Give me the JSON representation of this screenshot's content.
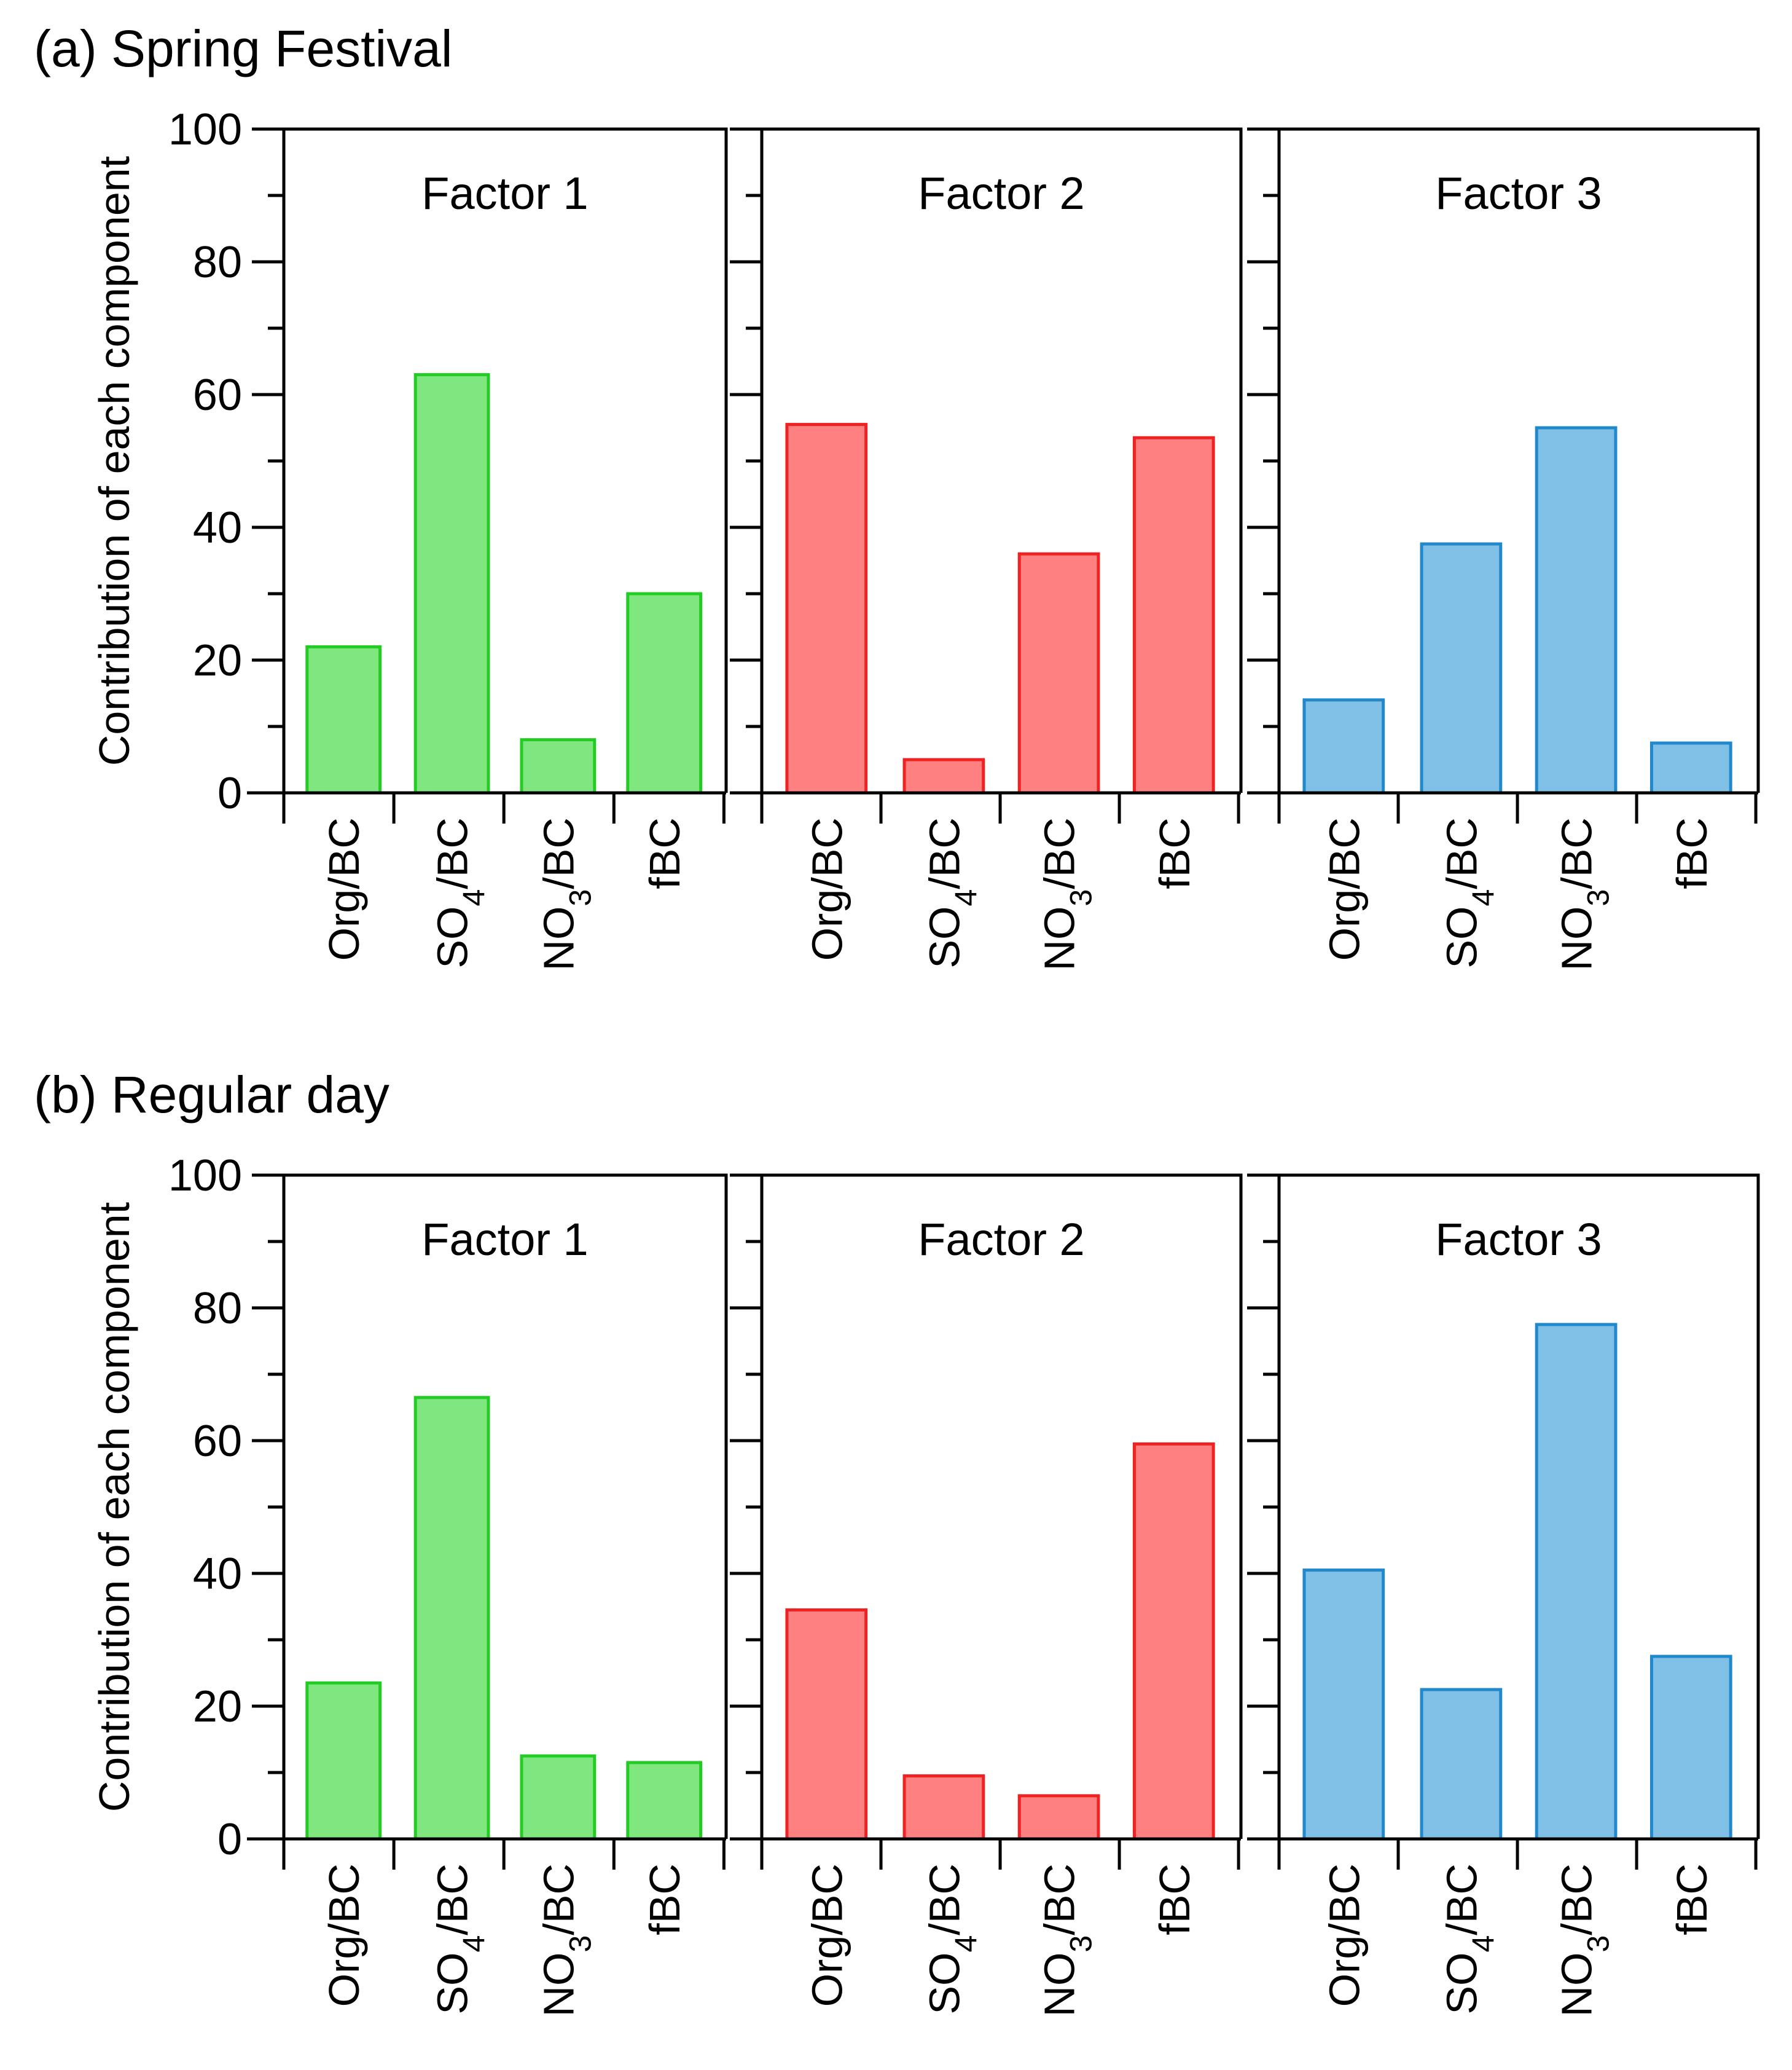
{
  "chart_data": [
    {
      "type": "bar",
      "panel_title": "(a) Spring Festival",
      "ylabel": "Contribution of each component",
      "ylim": [
        0,
        100
      ],
      "yticks": [
        0,
        20,
        40,
        60,
        80,
        100
      ],
      "categories": [
        "Org/BC",
        "SO4/BC",
        "NO3/BC",
        "fBC"
      ],
      "subplots": [
        {
          "title": "Factor 1",
          "values": [
            22,
            63,
            8,
            30
          ],
          "fill": "#80e680",
          "stroke": "#22cc22"
        },
        {
          "title": "Factor 2",
          "values": [
            55.5,
            5,
            36,
            53.5
          ],
          "fill": "#ff8080",
          "stroke": "#ee2222"
        },
        {
          "title": "Factor 3",
          "values": [
            14,
            37.5,
            55,
            7.5
          ],
          "fill": "#80c0e6",
          "stroke": "#2288cc"
        }
      ]
    },
    {
      "type": "bar",
      "panel_title": "(b) Regular day",
      "ylabel": "Contribution of each component",
      "ylim": [
        0,
        100
      ],
      "yticks": [
        0,
        20,
        40,
        60,
        80,
        100
      ],
      "categories": [
        "Org/BC",
        "SO4/BC",
        "NO3/BC",
        "fBC"
      ],
      "subplots": [
        {
          "title": "Factor 1",
          "values": [
            23.5,
            66.5,
            12.5,
            11.5
          ],
          "fill": "#80e680",
          "stroke": "#22cc22"
        },
        {
          "title": "Factor 2",
          "values": [
            34.5,
            9.5,
            6.5,
            59.5
          ],
          "fill": "#ff8080",
          "stroke": "#ee2222"
        },
        {
          "title": "Factor 3",
          "values": [
            40.5,
            22.5,
            77.5,
            27.5
          ],
          "fill": "#80c0e6",
          "stroke": "#2288cc"
        }
      ]
    }
  ]
}
